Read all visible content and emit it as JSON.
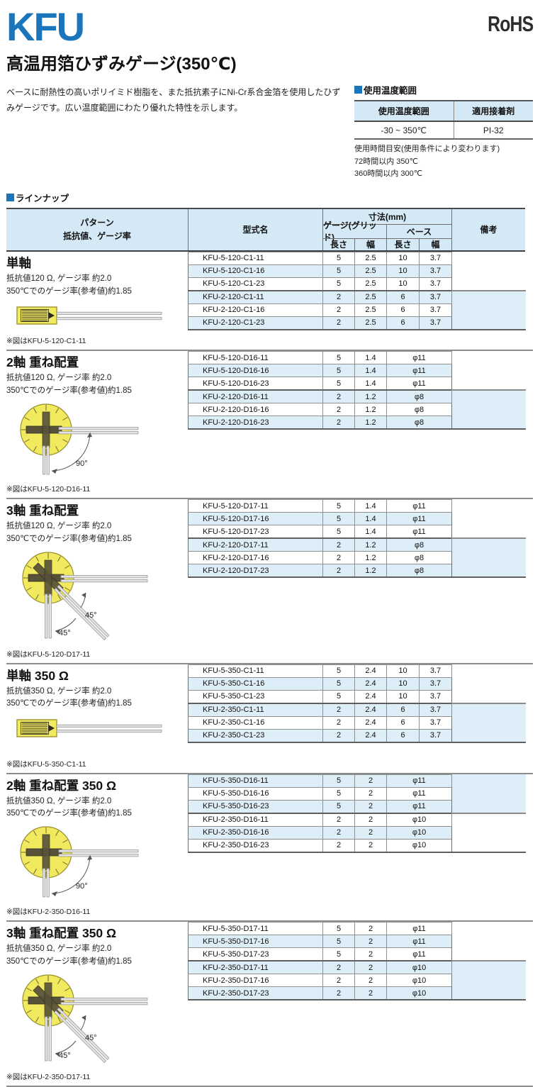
{
  "page": {
    "logo": "KFU",
    "rohs": "RoHS",
    "title": "高温用箔ひずみゲージ(350℃)",
    "description": "ベースに耐熱性の高いポリイミド樹脂を、また抵抗素子にNi-Cr系合金箔を使用したひずみゲージです。広い温度範囲にわたり優れた特性を示します。"
  },
  "temp_box": {
    "heading": "使用温度範囲",
    "col1": "使用温度範囲",
    "col2": "適用接着剤",
    "val1": "-30 ~ 350℃",
    "val2": "PI-32",
    "notes": [
      "使用時間目安(使用条件により変わります)",
      "72時間以内 350℃",
      "360時間以内 300℃"
    ]
  },
  "lineup": {
    "heading": "ラインナップ",
    "header": {
      "pattern1": "パターン",
      "pattern2": "抵抗値、ゲージ率",
      "model": "型式名",
      "dims": "寸法(mm)",
      "gauge": "ゲージ(グリッド)",
      "base": "ベース",
      "len1": "長さ",
      "wid1": "幅",
      "len2": "長さ",
      "wid2": "幅",
      "remarks": "備考"
    },
    "sections": [
      {
        "title": "単軸",
        "desc1": "抵抗値120 Ω, ゲージ率 約2.0",
        "desc2": "350℃でのゲージ率(参考値)約1.85",
        "figure": "uniaxial",
        "figure_labels": [],
        "caption": "※図はKFU-5-120-C1-11",
        "stripe_parity": 1,
        "rows": [
          {
            "model": "KFU-5-120-C1-11",
            "gl": "5",
            "gw": "2.5",
            "bl": "10",
            "bw": "3.7"
          },
          {
            "model": "KFU-5-120-C1-16",
            "gl": "5",
            "gw": "2.5",
            "bl": "10",
            "bw": "3.7"
          },
          {
            "model": "KFU-5-120-C1-23",
            "gl": "5",
            "gw": "2.5",
            "bl": "10",
            "bw": "3.7"
          },
          {
            "model": "KFU-2-120-C1-11",
            "gl": "2",
            "gw": "2.5",
            "bl": "6",
            "bw": "3.7"
          },
          {
            "model": "KFU-2-120-C1-16",
            "gl": "2",
            "gw": "2.5",
            "bl": "6",
            "bw": "3.7"
          },
          {
            "model": "KFU-2-120-C1-23",
            "gl": "2",
            "gw": "2.5",
            "bl": "6",
            "bw": "3.7"
          }
        ]
      },
      {
        "title": "2軸 重ね配置",
        "desc1": "抵抗値120 Ω, ゲージ率 約2.0",
        "desc2": "350℃でのゲージ率(参考値)約1.85",
        "figure": "biaxial",
        "figure_labels": [
          "90°"
        ],
        "caption": "※図はKFU-5-120-D16-11",
        "stripe_parity": 1,
        "rows": [
          {
            "model": "KFU-5-120-D16-11",
            "gl": "5",
            "gw": "1.4",
            "base": "φ11"
          },
          {
            "model": "KFU-5-120-D16-16",
            "gl": "5",
            "gw": "1.4",
            "base": "φ11"
          },
          {
            "model": "KFU-5-120-D16-23",
            "gl": "5",
            "gw": "1.4",
            "base": "φ11"
          },
          {
            "model": "KFU-2-120-D16-11",
            "gl": "2",
            "gw": "1.2",
            "base": "φ8"
          },
          {
            "model": "KFU-2-120-D16-16",
            "gl": "2",
            "gw": "1.2",
            "base": "φ8"
          },
          {
            "model": "KFU-2-120-D16-23",
            "gl": "2",
            "gw": "1.2",
            "base": "φ8"
          }
        ]
      },
      {
        "title": "3軸 重ね配置",
        "desc1": "抵抗値120 Ω, ゲージ率 約2.0",
        "desc2": "350℃でのゲージ率(参考値)約1.85",
        "figure": "triaxial",
        "figure_labels": [
          "45°",
          "45°"
        ],
        "caption": "※図はKFU-5-120-D17-11",
        "stripe_parity": 1,
        "rows": [
          {
            "model": "KFU-5-120-D17-11",
            "gl": "5",
            "gw": "1.4",
            "base": "φ11"
          },
          {
            "model": "KFU-5-120-D17-16",
            "gl": "5",
            "gw": "1.4",
            "base": "φ11"
          },
          {
            "model": "KFU-5-120-D17-23",
            "gl": "5",
            "gw": "1.4",
            "base": "φ11"
          },
          {
            "model": "KFU-2-120-D17-11",
            "gl": "2",
            "gw": "1.2",
            "base": "φ8"
          },
          {
            "model": "KFU-2-120-D17-16",
            "gl": "2",
            "gw": "1.2",
            "base": "φ8"
          },
          {
            "model": "KFU-2-120-D17-23",
            "gl": "2",
            "gw": "1.2",
            "base": "φ8"
          }
        ]
      },
      {
        "title": "単軸 350 Ω",
        "desc1": "抵抗値350 Ω, ゲージ率 約2.0",
        "desc2": "350℃でのゲージ率(参考値)約1.85",
        "figure": "uniaxial",
        "figure_labels": [],
        "caption": "※図はKFU-5-350-C1-11",
        "stripe_parity": 1,
        "rows": [
          {
            "model": "KFU-5-350-C1-11",
            "gl": "5",
            "gw": "2.4",
            "bl": "10",
            "bw": "3.7"
          },
          {
            "model": "KFU-5-350-C1-16",
            "gl": "5",
            "gw": "2.4",
            "bl": "10",
            "bw": "3.7"
          },
          {
            "model": "KFU-5-350-C1-23",
            "gl": "5",
            "gw": "2.4",
            "bl": "10",
            "bw": "3.7"
          },
          {
            "model": "KFU-2-350-C1-11",
            "gl": "2",
            "gw": "2.4",
            "bl": "6",
            "bw": "3.7"
          },
          {
            "model": "KFU-2-350-C1-16",
            "gl": "2",
            "gw": "2.4",
            "bl": "6",
            "bw": "3.7"
          },
          {
            "model": "KFU-2-350-C1-23",
            "gl": "2",
            "gw": "2.4",
            "bl": "6",
            "bw": "3.7"
          }
        ]
      },
      {
        "title": "2軸 重ね配置 350 Ω",
        "desc1": "抵抗値350 Ω, ゲージ率 約2.0",
        "desc2": "350℃でのゲージ率(参考値)約1.85",
        "figure": "biaxial",
        "figure_labels": [
          "90°"
        ],
        "caption": "※図はKFU-2-350-D16-11",
        "stripe_parity": 0,
        "rows": [
          {
            "model": "KFU-5-350-D16-11",
            "gl": "5",
            "gw": "2",
            "base": "φ11"
          },
          {
            "model": "KFU-5-350-D16-16",
            "gl": "5",
            "gw": "2",
            "base": "φ11"
          },
          {
            "model": "KFU-5-350-D16-23",
            "gl": "5",
            "gw": "2",
            "base": "φ11"
          },
          {
            "model": "KFU-2-350-D16-11",
            "gl": "2",
            "gw": "2",
            "base": "φ10"
          },
          {
            "model": "KFU-2-350-D16-16",
            "gl": "2",
            "gw": "2",
            "base": "φ10"
          },
          {
            "model": "KFU-2-350-D16-23",
            "gl": "2",
            "gw": "2",
            "base": "φ10"
          }
        ]
      },
      {
        "title": "3軸 重ね配置 350 Ω",
        "desc1": "抵抗値350 Ω, ゲージ率 約2.0",
        "desc2": "350℃でのゲージ率(参考値)約1.85",
        "figure": "triaxial",
        "figure_labels": [
          "45°",
          "45°"
        ],
        "caption": "※図はKFU-2-350-D17-11",
        "stripe_parity": 1,
        "rows": [
          {
            "model": "KFU-5-350-D17-11",
            "gl": "5",
            "gw": "2",
            "base": "φ11"
          },
          {
            "model": "KFU-5-350-D17-16",
            "gl": "5",
            "gw": "2",
            "base": "φ11"
          },
          {
            "model": "KFU-5-350-D17-23",
            "gl": "5",
            "gw": "2",
            "base": "φ11"
          },
          {
            "model": "KFU-2-350-D17-11",
            "gl": "2",
            "gw": "2",
            "base": "φ10"
          },
          {
            "model": "KFU-2-350-D17-16",
            "gl": "2",
            "gw": "2",
            "base": "φ10"
          },
          {
            "model": "KFU-2-350-D17-23",
            "gl": "2",
            "gw": "2",
            "base": "φ10"
          }
        ]
      }
    ]
  },
  "colors": {
    "accent_blue": "#1b75bb",
    "header_bg": "#d4e9f5",
    "stripe_bg": "#ddeef8",
    "gauge_yellow": "#f1e95e",
    "text_dark": "#1c1c1c"
  }
}
